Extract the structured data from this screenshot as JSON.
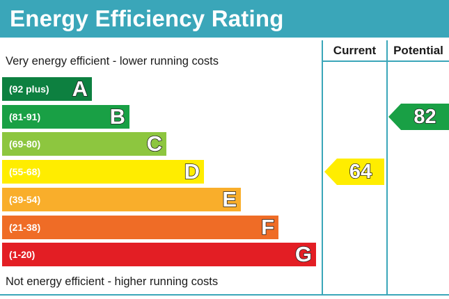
{
  "header": {
    "title": "Energy Efficiency Rating"
  },
  "columns": {
    "current": "Current",
    "potential": "Potential"
  },
  "notes": {
    "top": "Very energy efficient - lower running costs",
    "bottom": "Not energy efficient - higher running costs"
  },
  "bands": [
    {
      "range": "(92 plus)",
      "letter": "A",
      "color": "#0d8040"
    },
    {
      "range": "(81-91)",
      "letter": "B",
      "color": "#19a045"
    },
    {
      "range": "(69-80)",
      "letter": "C",
      "color": "#8dc63f"
    },
    {
      "range": "(55-68)",
      "letter": "D",
      "color": "#ffed00"
    },
    {
      "range": "(39-54)",
      "letter": "E",
      "color": "#f9ae2b"
    },
    {
      "range": "(21-38)",
      "letter": "F",
      "color": "#ef6c26"
    },
    {
      "range": "(1-20)",
      "letter": "G",
      "color": "#e31e24"
    }
  ],
  "ratings": {
    "current": {
      "value": "64",
      "band": "D",
      "color": "#ffed00"
    },
    "potential": {
      "value": "82",
      "band": "B",
      "color": "#19a045"
    }
  }
}
